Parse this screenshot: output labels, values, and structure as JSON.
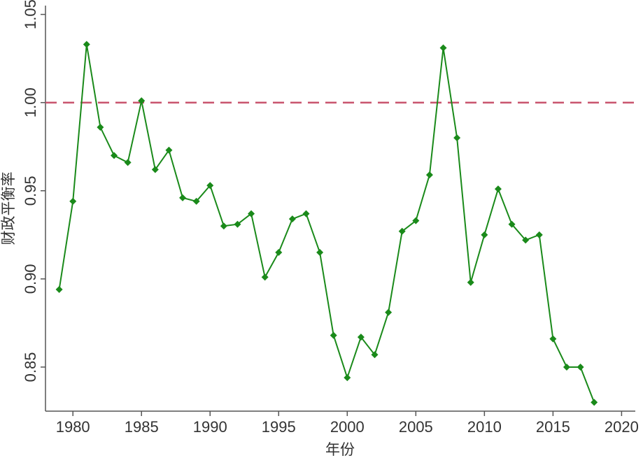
{
  "chart_data": {
    "type": "line",
    "title": "",
    "xlabel": "年份",
    "ylabel": "财政平衡率",
    "xlim": [
      1978,
      2021
    ],
    "ylim": [
      0.825,
      1.055
    ],
    "xticks": [
      1980,
      1985,
      1990,
      1995,
      2000,
      2005,
      2010,
      2015,
      2020
    ],
    "xtick_labels": [
      "1980",
      "1985",
      "1990",
      "1995",
      "2000",
      "2005",
      "2010",
      "2015",
      "2020"
    ],
    "yticks": [
      0.85,
      0.9,
      0.95,
      1.0,
      1.05
    ],
    "ytick_labels": [
      "0.85",
      "0.90",
      "0.95",
      "1.00",
      "1.05"
    ],
    "grid": false,
    "reference_line": {
      "y": 1.0,
      "style": "dashed",
      "color": "#c8546e"
    },
    "series": [
      {
        "color": "#1a8a1a",
        "marker": "diamond",
        "x": [
          1979,
          1980,
          1981,
          1982,
          1983,
          1984,
          1985,
          1986,
          1987,
          1988,
          1989,
          1990,
          1991,
          1992,
          1993,
          1994,
          1995,
          1996,
          1997,
          1998,
          1999,
          2000,
          2001,
          2002,
          2003,
          2004,
          2005,
          2006,
          2007,
          2008,
          2009,
          2010,
          2011,
          2012,
          2013,
          2014,
          2015,
          2016,
          2017,
          2018
        ],
        "y": [
          0.894,
          0.944,
          1.033,
          0.986,
          0.97,
          0.966,
          1.001,
          0.962,
          0.973,
          0.946,
          0.944,
          0.953,
          0.93,
          0.931,
          0.937,
          0.901,
          0.915,
          0.934,
          0.937,
          0.915,
          0.868,
          0.844,
          0.867,
          0.857,
          0.881,
          0.927,
          0.933,
          0.959,
          1.031,
          0.98,
          0.898,
          0.925,
          0.951,
          0.931,
          0.922,
          0.925,
          0.866,
          0.85,
          0.85,
          0.83
        ]
      }
    ]
  }
}
